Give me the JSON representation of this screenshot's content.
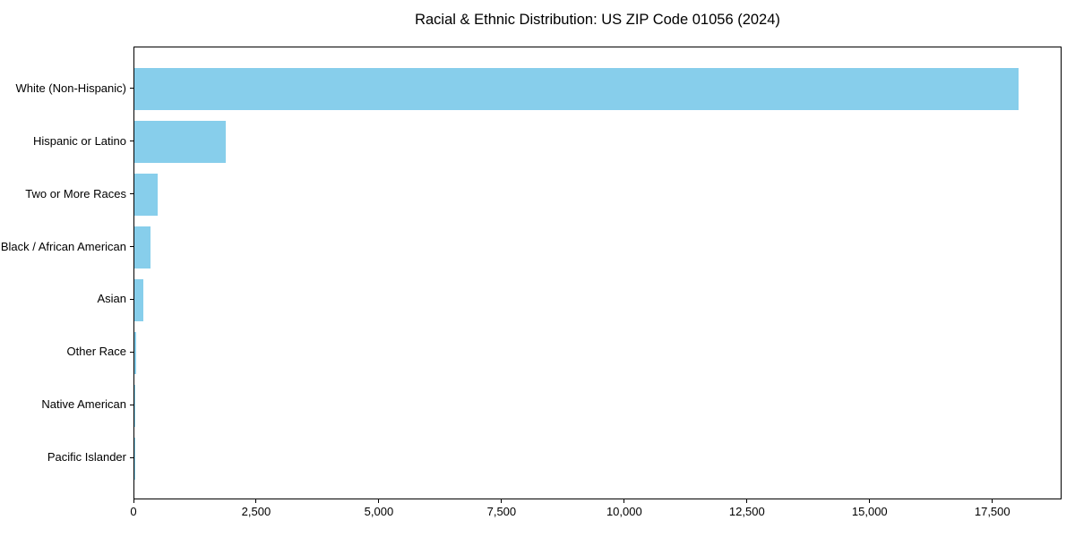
{
  "chart_data": {
    "type": "bar",
    "orientation": "horizontal",
    "title": "Racial & Ethnic Distribution: US ZIP Code 01056 (2024)",
    "xlabel": "",
    "ylabel": "",
    "categories": [
      "White (Non-Hispanic)",
      "Hispanic or Latino",
      "Two or More Races",
      "Black / African American",
      "Asian",
      "Other Race",
      "Native American",
      "Pacific Islander"
    ],
    "values": [
      18010,
      1870,
      475,
      330,
      175,
      30,
      10,
      5
    ],
    "xlim": [
      0,
      18910
    ],
    "x_ticks": [
      0,
      2500,
      5000,
      7500,
      10000,
      12500,
      15000,
      17500
    ],
    "x_tick_labels": [
      "0",
      "2,500",
      "5,000",
      "7,500",
      "10,000",
      "12,500",
      "15,000",
      "17,500"
    ],
    "grid": false,
    "legend": "none",
    "colors": {
      "bar": "#87CEEB",
      "axis": "#000000",
      "text": "#000000",
      "background": "#ffffff"
    }
  }
}
